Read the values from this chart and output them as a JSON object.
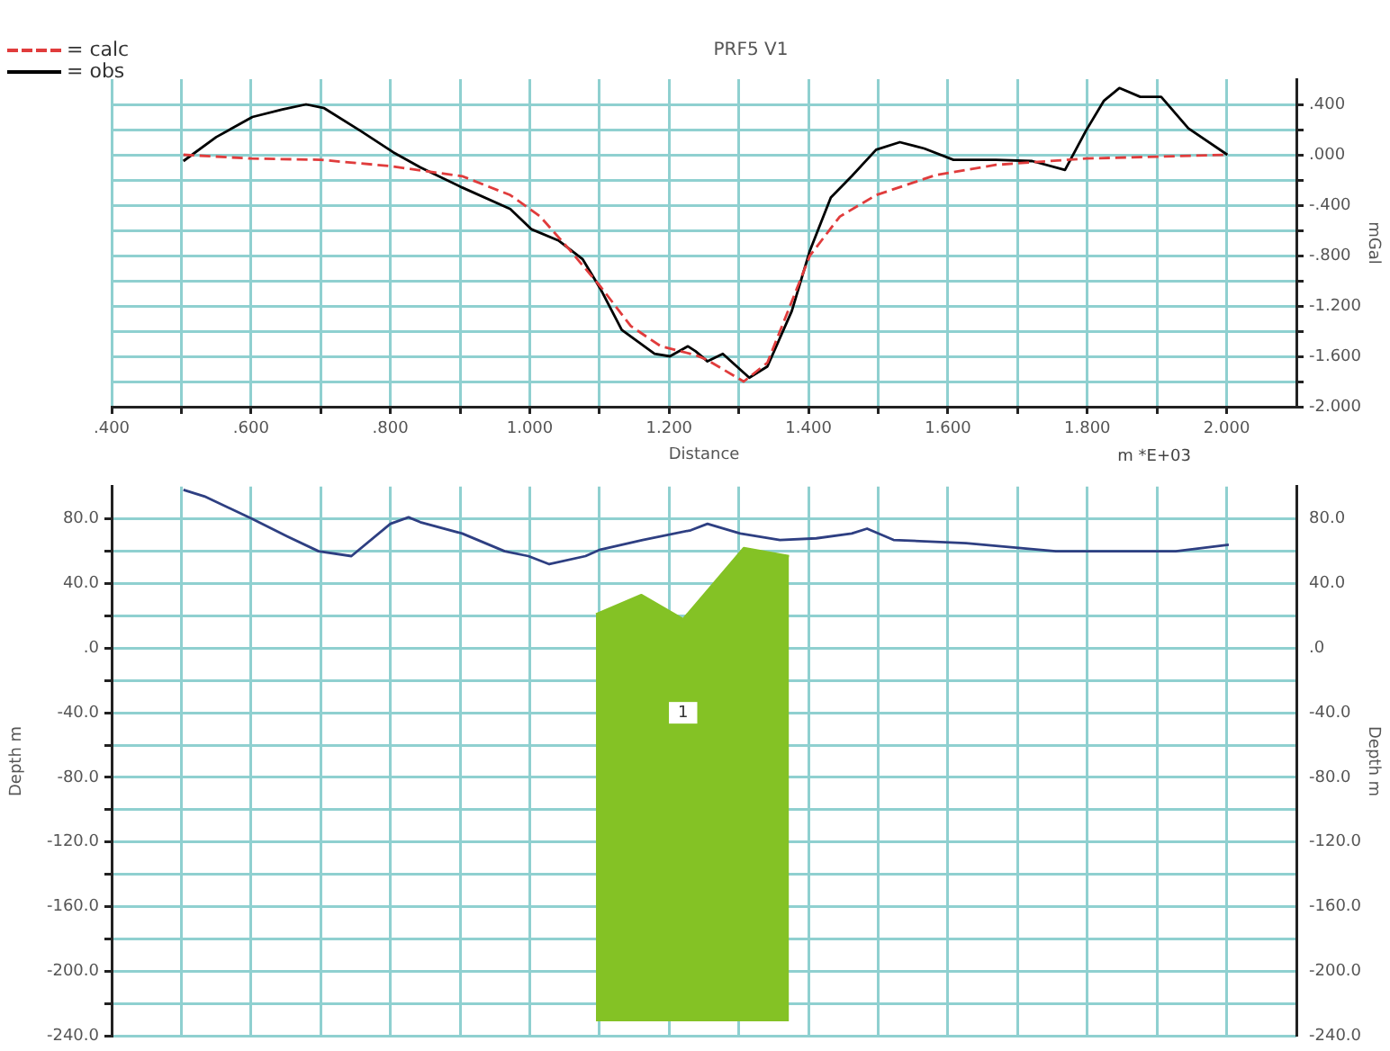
{
  "chart_data": [
    {
      "type": "line",
      "title": "PRF5 V1",
      "xlabel": "Distance",
      "ylabel": "mGal",
      "legend": "top left",
      "grid": true,
      "marker": "none",
      "annotations": [
        "m *E+03"
      ],
      "xlim": [
        0.4,
        2.1
      ],
      "ylim": [
        -2.0,
        0.6
      ],
      "xticks": [
        {
          "value": 0.4,
          "label": ".400"
        },
        {
          "value": 0.5,
          "label": null
        },
        {
          "value": 0.6,
          "label": ".600"
        },
        {
          "value": 0.7,
          "label": null
        },
        {
          "value": 0.8,
          "label": ".800"
        },
        {
          "value": 0.9,
          "label": null
        },
        {
          "value": 1.0,
          "label": "1.000"
        },
        {
          "value": 1.1,
          "label": null
        },
        {
          "value": 1.2,
          "label": "1.200"
        },
        {
          "value": 1.3,
          "label": null
        },
        {
          "value": 1.4,
          "label": "1.400"
        },
        {
          "value": 1.5,
          "label": null
        },
        {
          "value": 1.6,
          "label": "1.600"
        },
        {
          "value": 1.7,
          "label": null
        },
        {
          "value": 1.8,
          "label": "1.800"
        },
        {
          "value": 1.9,
          "label": null
        },
        {
          "value": 2.0,
          "label": "2.000"
        }
      ],
      "yticks": [
        {
          "value": 0.4,
          "label": ".400"
        },
        {
          "value": 0.2,
          "label": null
        },
        {
          "value": 0,
          "label": ".000"
        },
        {
          "value": -0.2,
          "label": null
        },
        {
          "value": -0.4,
          "label": "-.400"
        },
        {
          "value": -0.6,
          "label": null
        },
        {
          "value": -0.8,
          "label": "-.800"
        },
        {
          "value": -1.0,
          "label": null
        },
        {
          "value": -1.2,
          "label": "-1.200"
        },
        {
          "value": -1.4,
          "label": null
        },
        {
          "value": -1.6,
          "label": "-1.600"
        },
        {
          "value": -1.8,
          "label": null
        },
        {
          "value": -2.0,
          "label": "-2.000"
        }
      ],
      "series": [
        {
          "name": "= calc",
          "color": "#e03c3c",
          "line_style": "dashed",
          "x": [
            0.503,
            0.6,
            0.7,
            0.8,
            0.903,
            0.972,
            1.015,
            1.058,
            1.102,
            1.145,
            1.188,
            1.238,
            1.255,
            1.307,
            1.341,
            1.367,
            1.402,
            1.445,
            1.497,
            1.583,
            1.669,
            1.798,
            2.0
          ],
          "values": [
            0.0,
            -0.03,
            -0.04,
            -0.09,
            -0.17,
            -0.32,
            -0.49,
            -0.76,
            -1.05,
            -1.36,
            -1.52,
            -1.59,
            -1.63,
            -1.8,
            -1.65,
            -1.29,
            -0.8,
            -0.49,
            -0.32,
            -0.16,
            -0.08,
            -0.03,
            0.0
          ]
        },
        {
          "name": "= obs",
          "color": "#000000",
          "line_style": "solid",
          "x": [
            0.503,
            0.55,
            0.602,
            0.645,
            0.679,
            0.705,
            0.757,
            0.804,
            0.843,
            0.903,
            0.972,
            1.002,
            1.041,
            1.076,
            1.102,
            1.132,
            1.179,
            1.201,
            1.227,
            1.238,
            1.255,
            1.277,
            1.315,
            1.341,
            1.376,
            1.402,
            1.432,
            1.462,
            1.497,
            1.531,
            1.566,
            1.608,
            1.669,
            1.721,
            1.768,
            1.798,
            1.824,
            1.846,
            1.876,
            1.906,
            1.945,
            2.001
          ],
          "values": [
            -0.05,
            0.14,
            0.3,
            0.36,
            0.4,
            0.37,
            0.19,
            0.02,
            -0.1,
            -0.26,
            -0.43,
            -0.59,
            -0.68,
            -0.83,
            -1.07,
            -1.39,
            -1.58,
            -1.6,
            -1.52,
            -1.56,
            -1.64,
            -1.58,
            -1.77,
            -1.68,
            -1.24,
            -0.76,
            -0.34,
            -0.17,
            0.04,
            0.1,
            0.05,
            -0.04,
            -0.04,
            -0.05,
            -0.12,
            0.19,
            0.43,
            0.53,
            0.46,
            0.46,
            0.21,
            0.0
          ]
        }
      ]
    },
    {
      "type": "line",
      "ylabel": "Depth m",
      "y2label": "Depth m",
      "grid": true,
      "marker": "none",
      "tick_labels": "y",
      "annotations": [
        {
          "text": "1",
          "x": 1.22,
          "y": -40
        }
      ],
      "xlim": [
        0.4,
        2.1
      ],
      "ylim": [
        -240,
        100
      ],
      "y2lim": [
        -240,
        100
      ],
      "xticks": [
        0.4,
        0.5,
        0.6,
        0.7,
        0.8,
        0.9,
        1.0,
        1.1,
        1.2,
        1.3,
        1.4,
        1.5,
        1.6,
        1.7,
        1.8,
        1.9,
        2.0
      ],
      "yticks": [
        {
          "value": 80,
          "label": "80.0"
        },
        {
          "value": 60,
          "label": null
        },
        {
          "value": 40,
          "label": "40.0"
        },
        {
          "value": 20,
          "label": null
        },
        {
          "value": 0,
          "label": ".0"
        },
        {
          "value": -20,
          "label": null
        },
        {
          "value": -40,
          "label": "-40.0"
        },
        {
          "value": -60,
          "label": null
        },
        {
          "value": -80,
          "label": "-80.0"
        },
        {
          "value": -100,
          "label": null
        },
        {
          "value": -120,
          "label": "-120.0"
        },
        {
          "value": -140,
          "label": null
        },
        {
          "value": -160,
          "label": "-160.0"
        },
        {
          "value": -180,
          "label": null
        },
        {
          "value": -200,
          "label": "-200.0"
        },
        {
          "value": -220,
          "label": null
        },
        {
          "value": -240,
          "label": "-240.0"
        }
      ],
      "y2ticks": [
        {
          "value": 80,
          "label": "80.0"
        },
        {
          "value": 60,
          "label": null
        },
        {
          "value": 40,
          "label": "40.0"
        },
        {
          "value": 20,
          "label": null
        },
        {
          "value": 0,
          "label": ".0"
        },
        {
          "value": -20,
          "label": null
        },
        {
          "value": -40,
          "label": "-40.0"
        },
        {
          "value": -60,
          "label": null
        },
        {
          "value": -80,
          "label": "-80.0"
        },
        {
          "value": -100,
          "label": null
        },
        {
          "value": -120,
          "label": "-120.0"
        },
        {
          "value": -140,
          "label": null
        },
        {
          "value": -160,
          "label": "-160.0"
        },
        {
          "value": -180,
          "label": null
        },
        {
          "value": -200,
          "label": "-200.0"
        },
        {
          "value": -220,
          "label": null
        },
        {
          "value": -240,
          "label": "-240.0"
        }
      ],
      "series": [
        {
          "color": "#2e3f82",
          "line_style": "solid",
          "x": [
            0.503,
            0.533,
            0.602,
            0.653,
            0.697,
            0.744,
            0.8,
            0.826,
            0.843,
            0.903,
            0.964,
            0.998,
            1.028,
            1.08,
            1.101,
            1.162,
            1.231,
            1.255,
            1.302,
            1.359,
            1.411,
            1.462,
            1.484,
            1.522,
            1.626,
            1.755,
            1.841,
            1.927,
            2.003
          ],
          "values": [
            98,
            94,
            80,
            69,
            60,
            57,
            77,
            81,
            78,
            71,
            60,
            57,
            52,
            57,
            61,
            67,
            73,
            77,
            71,
            67,
            68,
            71,
            74,
            67,
            65,
            60,
            60,
            60,
            64
          ]
        },
        {
          "color": "#84c225",
          "x": [
            1.095,
            1.16,
            1.22,
            1.307,
            1.372
          ],
          "values": [
            21,
            33,
            18,
            62,
            57
          ],
          "lower": [
            -231,
            -231,
            -231,
            -231,
            -231
          ],
          "upper": [
            21,
            33,
            18,
            62,
            57
          ]
        }
      ]
    }
  ]
}
